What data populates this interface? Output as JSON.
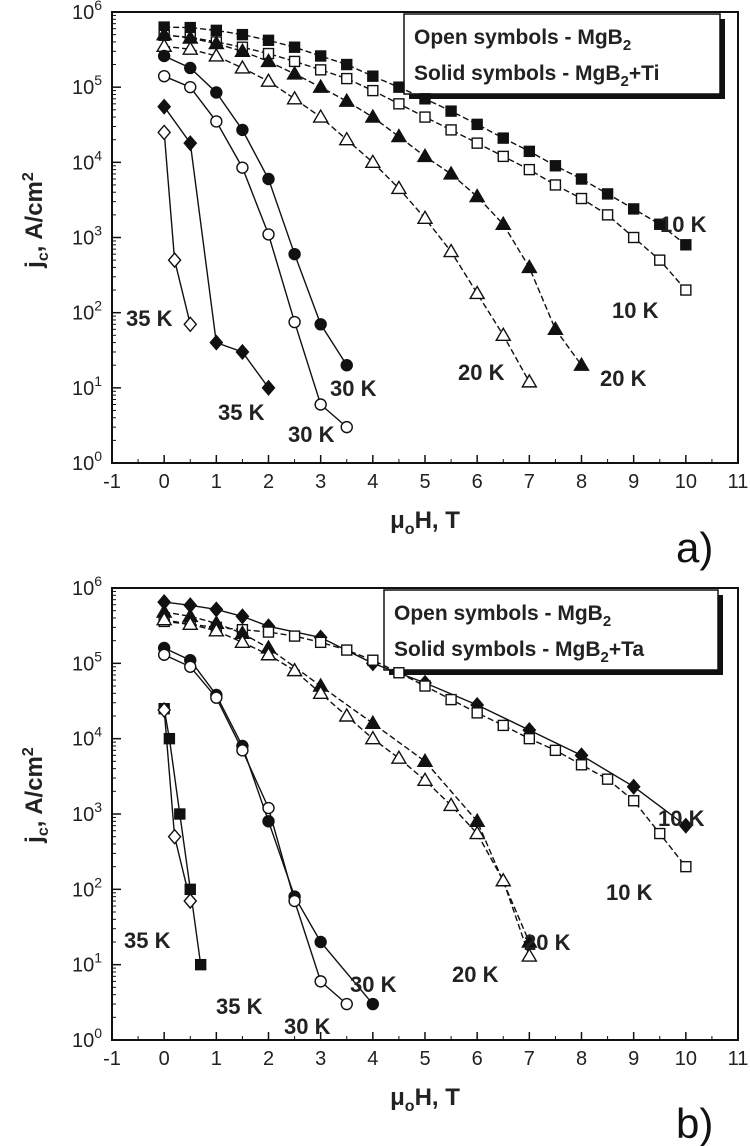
{
  "chart_data": [
    {
      "type": "scatter",
      "panel_label": "a)",
      "xlabel": "μoH, T",
      "ylabel": "jc, A/cm2",
      "xlim": [
        -1,
        11
      ],
      "ylim": [
        1,
        1000000
      ],
      "yscale": "log",
      "x_ticks": [
        "-1",
        "0",
        "1",
        "2",
        "3",
        "4",
        "5",
        "6",
        "7",
        "8",
        "9",
        "10",
        "11"
      ],
      "y_ticks": [
        "10^0",
        "10^1",
        "10^2",
        "10^3",
        "10^4",
        "10^5",
        "10^6"
      ],
      "legend": {
        "position": "top-right",
        "lines": [
          {
            "text": "Open symbols - MgB",
            "sub": "2",
            "tail": ""
          },
          {
            "text": "Solid symbols - MgB",
            "sub": "2",
            "tail": "+Ti"
          }
        ]
      },
      "series": [
        {
          "marker": "square",
          "filled": true,
          "dashed": true,
          "label": "10 K",
          "x": [
            0,
            0.5,
            1,
            1.5,
            2,
            2.5,
            3,
            3.5,
            4,
            4.5,
            5,
            5.5,
            6,
            6.5,
            7,
            7.5,
            8,
            8.5,
            9,
            9.5,
            10
          ],
          "y": [
            630000,
            620000,
            570000,
            500000,
            420000,
            340000,
            260000,
            200000,
            140000,
            100000,
            70000,
            48000,
            32000,
            21000,
            14000,
            9000,
            6000,
            3800,
            2400,
            1500,
            800
          ]
        },
        {
          "marker": "square",
          "filled": false,
          "dashed": true,
          "label": "10 K",
          "x": [
            0,
            0.5,
            1,
            1.5,
            2,
            2.5,
            3,
            3.5,
            4,
            4.5,
            5,
            5.5,
            6,
            6.5,
            7,
            7.5,
            8,
            8.5,
            9,
            9.5,
            10
          ],
          "y": [
            490000,
            460000,
            400000,
            340000,
            280000,
            220000,
            170000,
            130000,
            90000,
            60000,
            40000,
            27000,
            18000,
            12000,
            8000,
            5000,
            3300,
            2000,
            1000,
            500,
            200
          ]
        },
        {
          "marker": "triangle",
          "filled": true,
          "dashed": true,
          "label": "20 K",
          "x": [
            0,
            0.5,
            1,
            1.5,
            2,
            2.5,
            3,
            3.5,
            4,
            4.5,
            5,
            5.5,
            6,
            6.5,
            7,
            7.5,
            8
          ],
          "y": [
            500000,
            450000,
            380000,
            300000,
            220000,
            150000,
            100000,
            65000,
            40000,
            22000,
            12000,
            7000,
            3500,
            1500,
            400,
            60,
            20
          ]
        },
        {
          "marker": "triangle",
          "filled": false,
          "dashed": true,
          "label": "20 K",
          "x": [
            0,
            0.5,
            1,
            1.5,
            2,
            2.5,
            3,
            3.5,
            4,
            4.5,
            5,
            5.5,
            6,
            6.5,
            7
          ],
          "y": [
            350000,
            320000,
            260000,
            180000,
            120000,
            70000,
            40000,
            20000,
            10000,
            4500,
            1800,
            650,
            180,
            50,
            12
          ]
        },
        {
          "marker": "circle",
          "filled": true,
          "dashed": false,
          "label": "30 K",
          "x": [
            0,
            0.5,
            1,
            1.5,
            2,
            2.5,
            3,
            3.5
          ],
          "y": [
            260000,
            180000,
            85000,
            27000,
            6000,
            600,
            70,
            20
          ]
        },
        {
          "marker": "circle",
          "filled": false,
          "dashed": false,
          "label": "30 K",
          "x": [
            0,
            0.5,
            1,
            1.5,
            2,
            2.5,
            3,
            3.5
          ],
          "y": [
            140000,
            100000,
            35000,
            8500,
            1100,
            75,
            6,
            3
          ]
        },
        {
          "marker": "diamond",
          "filled": true,
          "dashed": false,
          "label": "35 K",
          "x": [
            0,
            0.5,
            1,
            1.5,
            2
          ],
          "y": [
            55000,
            18000,
            40,
            30,
            10
          ]
        },
        {
          "marker": "diamond",
          "filled": false,
          "dashed": false,
          "label": "35 K",
          "x": [
            0,
            0.2,
            0.5
          ],
          "y": [
            25000,
            500,
            70
          ]
        }
      ]
    },
    {
      "type": "scatter",
      "panel_label": "b)",
      "xlabel": "μoH, T",
      "ylabel": "jc, A/cm2",
      "xlim": [
        -1,
        11
      ],
      "ylim": [
        1,
        1000000
      ],
      "yscale": "log",
      "x_ticks": [
        "-1",
        "0",
        "1",
        "2",
        "3",
        "4",
        "5",
        "6",
        "7",
        "8",
        "9",
        "10",
        "11"
      ],
      "y_ticks": [
        "10^0",
        "10^1",
        "10^2",
        "10^3",
        "10^4",
        "10^5",
        "10^6"
      ],
      "legend": {
        "position": "top-right",
        "lines": [
          {
            "text": "Open symbols - MgB",
            "sub": "2",
            "tail": ""
          },
          {
            "text": "Solid symbols - MgB",
            "sub": "2",
            "tail": "+Ta"
          }
        ]
      },
      "series": [
        {
          "marker": "diamond",
          "filled": true,
          "dashed": false,
          "label": "10 K",
          "x": [
            0,
            0.5,
            1,
            1.5,
            2,
            3,
            4,
            5,
            6,
            7,
            8,
            9,
            10
          ],
          "y": [
            650000,
            590000,
            520000,
            420000,
            310000,
            220000,
            100000,
            55000,
            28000,
            13000,
            6000,
            2300,
            700
          ]
        },
        {
          "marker": "square",
          "filled": false,
          "dashed": true,
          "label": "10 K",
          "x": [
            0,
            0.5,
            1,
            1.5,
            2,
            2.5,
            3,
            3.5,
            4,
            4.5,
            5,
            5.5,
            6,
            6.5,
            7,
            7.5,
            8,
            8.5,
            9,
            9.5,
            10
          ],
          "y": [
            360000,
            330000,
            300000,
            280000,
            260000,
            230000,
            190000,
            150000,
            110000,
            75000,
            50000,
            33000,
            22000,
            15000,
            10000,
            7000,
            4500,
            2900,
            1500,
            550,
            200
          ]
        },
        {
          "marker": "triangle",
          "filled": true,
          "dashed": true,
          "label": "20 K",
          "x": [
            0,
            0.5,
            1,
            1.5,
            2,
            3,
            4,
            5,
            6,
            7
          ],
          "y": [
            480000,
            420000,
            340000,
            250000,
            160000,
            50000,
            16000,
            5000,
            800,
            20
          ]
        },
        {
          "marker": "triangle",
          "filled": false,
          "dashed": true,
          "label": "20 K",
          "x": [
            0,
            0.5,
            1,
            1.5,
            2,
            2.5,
            3,
            3.5,
            4,
            4.5,
            5,
            5.5,
            6,
            6.5,
            7
          ],
          "y": [
            380000,
            330000,
            270000,
            190000,
            130000,
            80000,
            40000,
            20000,
            10000,
            5500,
            2800,
            1300,
            550,
            130,
            13
          ]
        },
        {
          "marker": "circle",
          "filled": true,
          "dashed": false,
          "label": "30 K",
          "x": [
            0,
            0.5,
            1,
            1.5,
            2,
            2.5,
            3,
            4
          ],
          "y": [
            160000,
            110000,
            38000,
            8000,
            800,
            80,
            20,
            3
          ]
        },
        {
          "marker": "circle",
          "filled": false,
          "dashed": false,
          "label": "30 K",
          "x": [
            0,
            0.5,
            1,
            1.5,
            2,
            2.5,
            3,
            3.5
          ],
          "y": [
            130000,
            90000,
            35000,
            7000,
            1200,
            70,
            6,
            3
          ]
        },
        {
          "marker": "square",
          "filled": true,
          "dashed": false,
          "label": "35 K",
          "x": [
            0,
            0.1,
            0.3,
            0.5,
            0.7
          ],
          "y": [
            25000,
            10000,
            1000,
            100,
            10
          ]
        },
        {
          "marker": "diamond",
          "filled": false,
          "dashed": false,
          "label": "35 K",
          "x": [
            0,
            0.2,
            0.5
          ],
          "y": [
            24000,
            500,
            70
          ]
        }
      ]
    }
  ]
}
